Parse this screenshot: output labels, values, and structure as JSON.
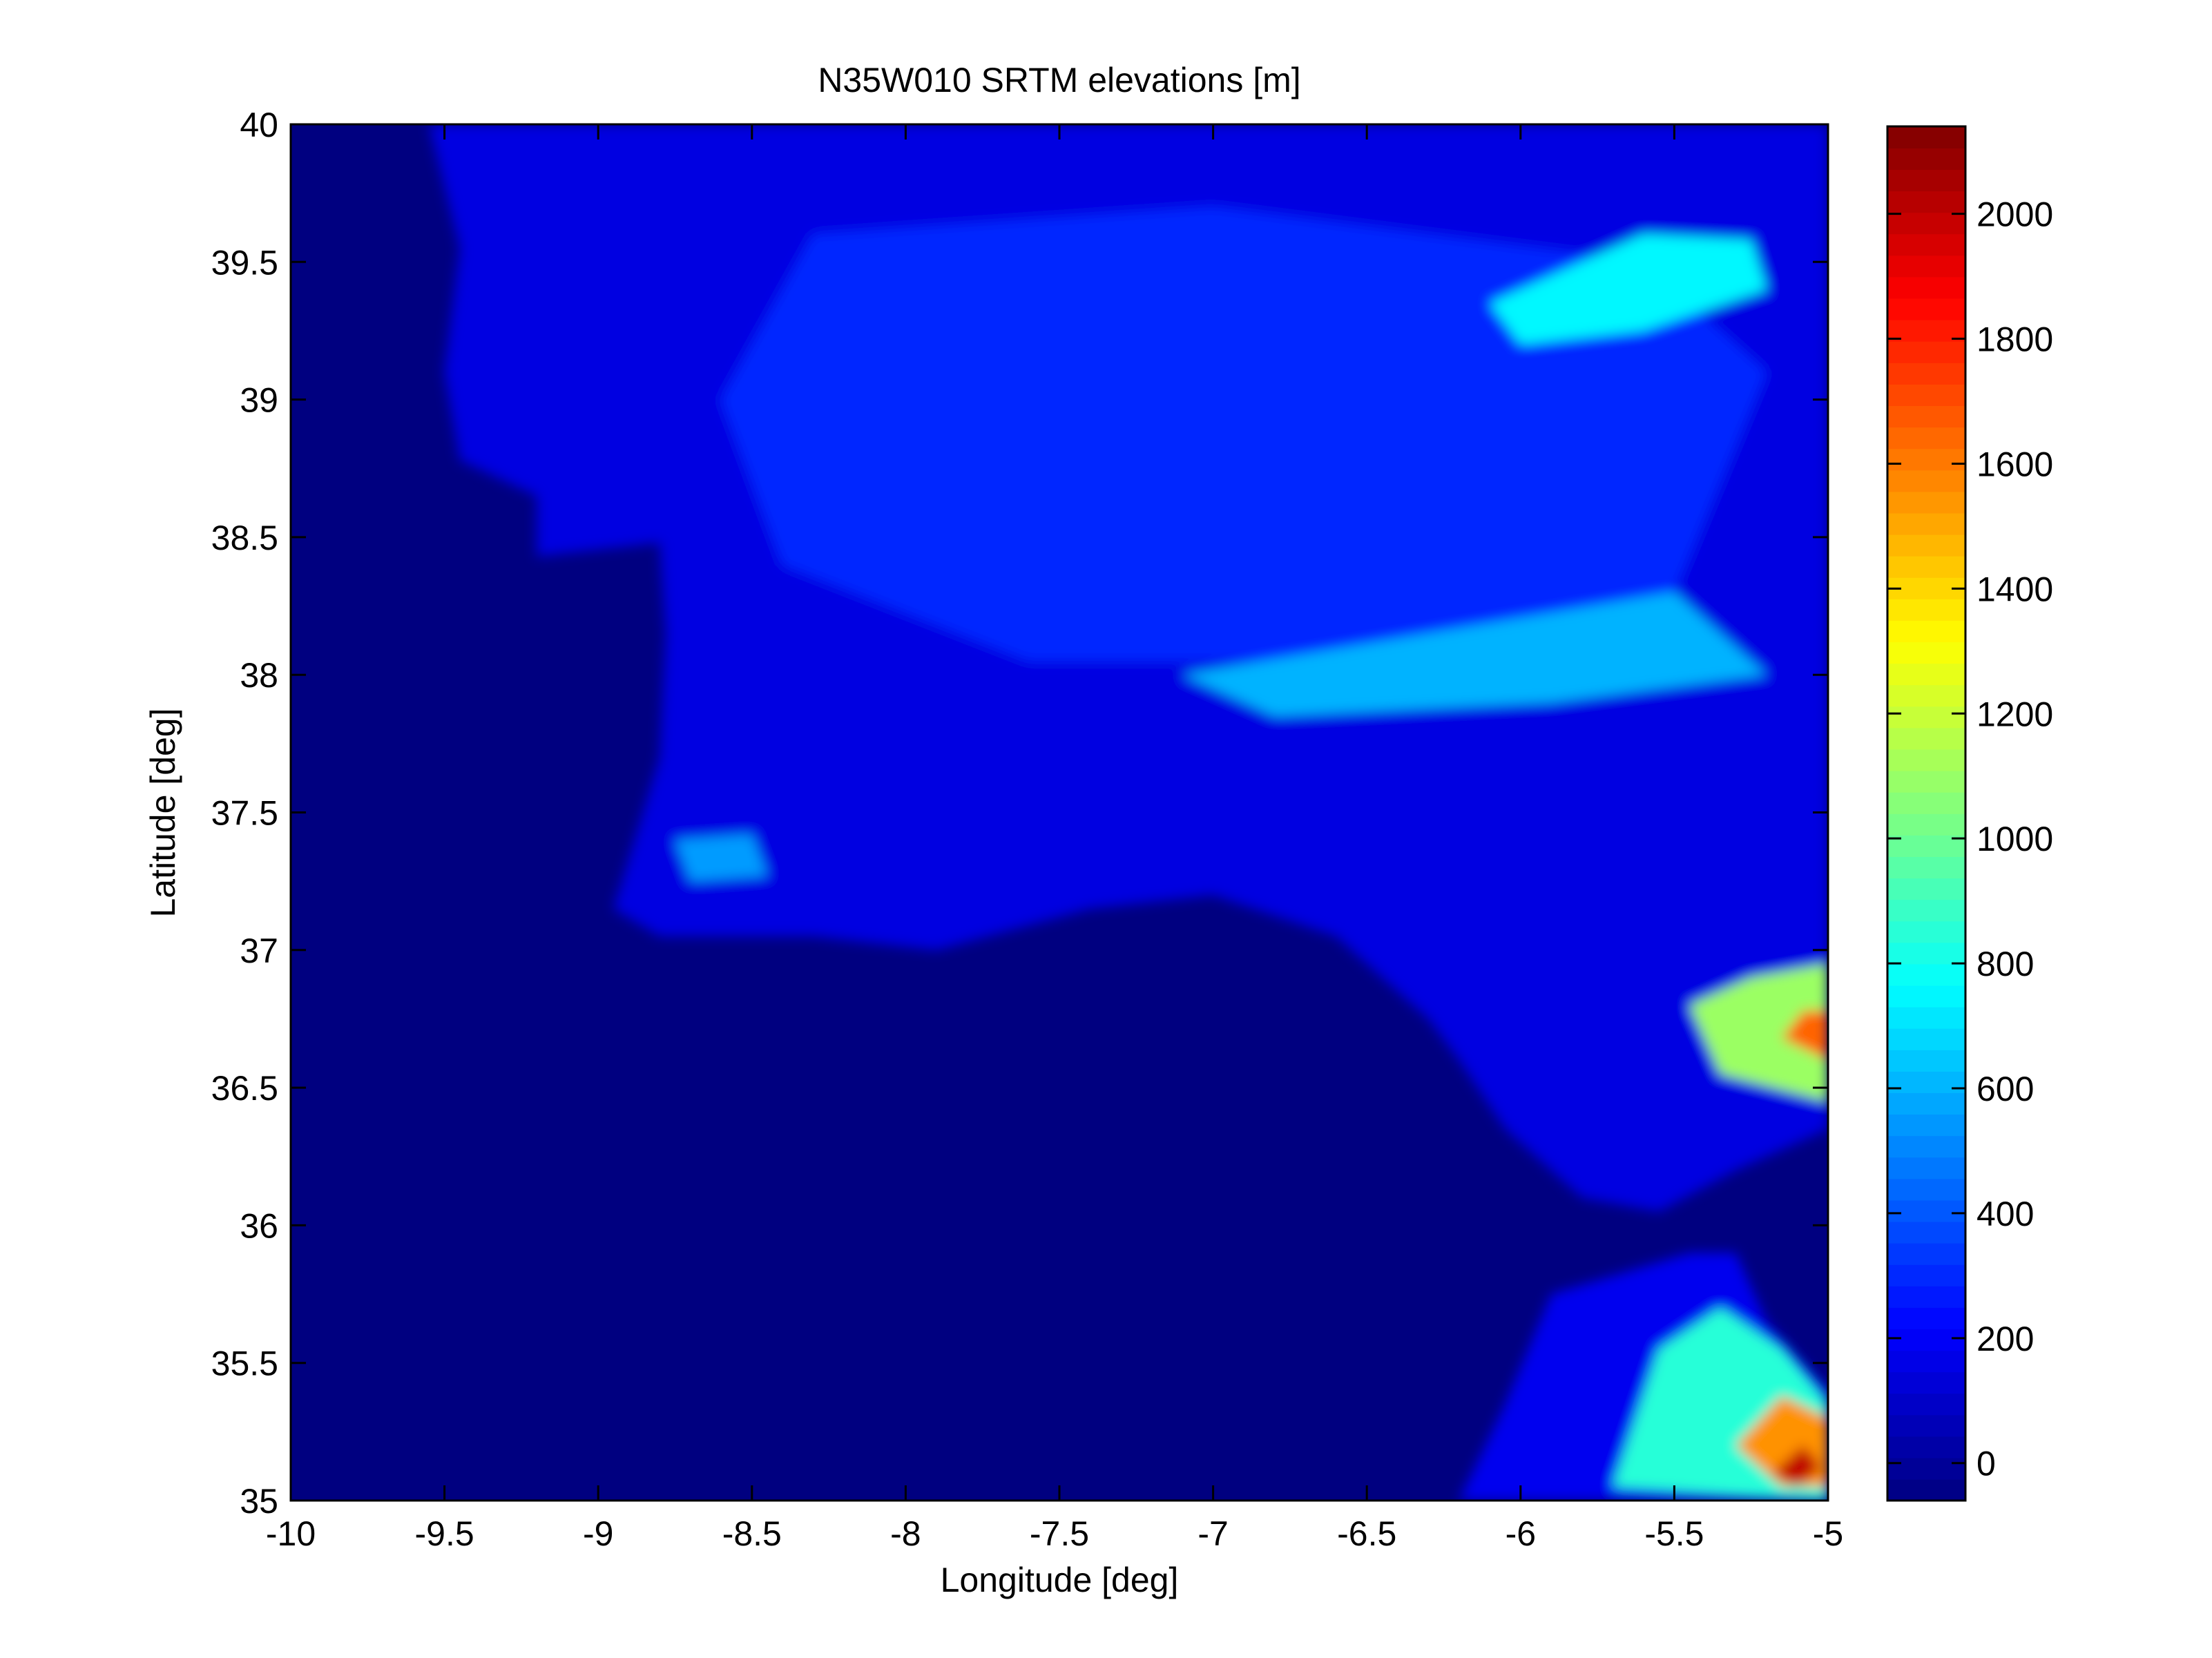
{
  "chart_data": {
    "type": "heatmap",
    "title": "N35W010 SRTM elevations [m]",
    "xlabel": "Longitude [deg]",
    "ylabel": "Latitude [deg]",
    "xlim": [
      -10,
      -5
    ],
    "ylim": [
      35,
      40
    ],
    "x_ticks": [
      -10,
      -9.5,
      -9,
      -8.5,
      -8,
      -7.5,
      -7,
      -6.5,
      -6,
      -5.5,
      -5
    ],
    "x_tick_labels": [
      "-10",
      "-9.5",
      "-9",
      "-8.5",
      "-8",
      "-7.5",
      "-7",
      "-6.5",
      "-6",
      "-5.5",
      "-5"
    ],
    "y_ticks": [
      40,
      39.5,
      39,
      38.5,
      38,
      37.5,
      37,
      36.5,
      36,
      35.5,
      35
    ],
    "y_tick_labels": [
      "40",
      "39.5",
      "39",
      "38.5",
      "38",
      "37.5",
      "37",
      "36.5",
      "36",
      "35.5",
      "35"
    ],
    "colorbar": {
      "colormap": "jet",
      "range": [
        -60,
        2140
      ],
      "ticks": [
        2000,
        1800,
        1600,
        1400,
        1200,
        1000,
        800,
        600,
        400,
        200,
        0
      ],
      "tick_labels": [
        "2000",
        "1800",
        "1600",
        "1400",
        "1200",
        "1000",
        "800",
        "600",
        "400",
        "200",
        "0"
      ]
    },
    "grid": false,
    "regions": [
      {
        "area": "ocean",
        "polygon": [
          [
            -10,
            35
          ],
          [
            -10,
            40
          ],
          [
            -5,
            40
          ],
          [
            -5,
            35
          ]
        ],
        "elevation": -60
      },
      {
        "area": "iberia-lowland",
        "polygon": [
          [
            -9.55,
            40
          ],
          [
            -9.45,
            39.55
          ],
          [
            -9.5,
            39.1
          ],
          [
            -9.45,
            38.78
          ],
          [
            -9.2,
            38.65
          ],
          [
            -9.2,
            38.43
          ],
          [
            -8.8,
            38.48
          ],
          [
            -8.78,
            38.15
          ],
          [
            -8.8,
            37.7
          ],
          [
            -8.95,
            37.15
          ],
          [
            -8.8,
            37.05
          ],
          [
            -8.3,
            37.05
          ],
          [
            -7.9,
            37.0
          ],
          [
            -7.4,
            37.15
          ],
          [
            -7.0,
            37.2
          ],
          [
            -6.6,
            37.05
          ],
          [
            -6.3,
            36.75
          ],
          [
            -6.2,
            36.6
          ],
          [
            -6.05,
            36.35
          ],
          [
            -5.8,
            36.1
          ],
          [
            -5.55,
            36.05
          ],
          [
            -5.3,
            36.2
          ],
          [
            -5.0,
            36.35
          ],
          [
            -5,
            40
          ]
        ],
        "elevation": 150
      },
      {
        "area": "iberia-central-plateau",
        "polygon": [
          [
            -8.3,
            39.6
          ],
          [
            -7.0,
            39.7
          ],
          [
            -5.6,
            39.5
          ],
          [
            -5.2,
            39.1
          ],
          [
            -5.5,
            38.3
          ],
          [
            -6.5,
            38.05
          ],
          [
            -7.6,
            38.05
          ],
          [
            -8.4,
            38.4
          ],
          [
            -8.6,
            39.0
          ]
        ],
        "elevation": 300
      },
      {
        "area": "sierra-de-gredos",
        "polygon": [
          [
            -6.1,
            39.35
          ],
          [
            -5.6,
            39.6
          ],
          [
            -5.25,
            39.58
          ],
          [
            -5.2,
            39.4
          ],
          [
            -5.6,
            39.25
          ],
          [
            -6.0,
            39.2
          ]
        ],
        "elevation": 750
      },
      {
        "area": "sierra-morena",
        "polygon": [
          [
            -7.1,
            38.0
          ],
          [
            -6.3,
            38.15
          ],
          [
            -5.5,
            38.3
          ],
          [
            -5.2,
            38.0
          ],
          [
            -5.9,
            37.9
          ],
          [
            -6.8,
            37.85
          ]
        ],
        "elevation": 600
      },
      {
        "area": "sierra-de-monchique",
        "polygon": [
          [
            -8.75,
            37.4
          ],
          [
            -8.5,
            37.42
          ],
          [
            -8.45,
            37.27
          ],
          [
            -8.7,
            37.25
          ]
        ],
        "elevation": 550
      },
      {
        "area": "betic-ranges",
        "polygon": [
          [
            -5.0,
            36.45
          ],
          [
            -5.35,
            36.55
          ],
          [
            -5.45,
            36.8
          ],
          [
            -5.25,
            36.9
          ],
          [
            -5.0,
            36.95
          ]
        ],
        "elevation": 1100
      },
      {
        "area": "betic-peaks",
        "polygon": [
          [
            -5.0,
            36.6
          ],
          [
            -5.15,
            36.68
          ],
          [
            -5.08,
            36.78
          ],
          [
            -5.0,
            36.78
          ]
        ],
        "elevation": 1650
      },
      {
        "area": "north-africa-lowland",
        "polygon": [
          [
            -6.2,
            35.0
          ],
          [
            -6.05,
            35.35
          ],
          [
            -5.9,
            35.75
          ],
          [
            -5.45,
            35.9
          ],
          [
            -5.3,
            35.9
          ],
          [
            -5.2,
            35.65
          ],
          [
            -5.0,
            35.4
          ],
          [
            -5.0,
            35.0
          ]
        ],
        "elevation": 180
      },
      {
        "area": "rif-ranges",
        "polygon": [
          [
            -5.7,
            35.05
          ],
          [
            -5.55,
            35.55
          ],
          [
            -5.35,
            35.7
          ],
          [
            -5.15,
            35.55
          ],
          [
            -5.0,
            35.35
          ],
          [
            -5.0,
            35.0
          ]
        ],
        "elevation": 850
      },
      {
        "area": "rif-peaks",
        "polygon": [
          [
            -5.3,
            35.2
          ],
          [
            -5.15,
            35.38
          ],
          [
            -5.0,
            35.3
          ],
          [
            -5.0,
            35.05
          ],
          [
            -5.15,
            35.05
          ]
        ],
        "elevation": 1550
      },
      {
        "area": "rif-summit",
        "polygon": [
          [
            -5.18,
            35.1
          ],
          [
            -5.08,
            35.2
          ],
          [
            -5.02,
            35.12
          ],
          [
            -5.1,
            35.05
          ]
        ],
        "elevation": 2000
      }
    ]
  }
}
